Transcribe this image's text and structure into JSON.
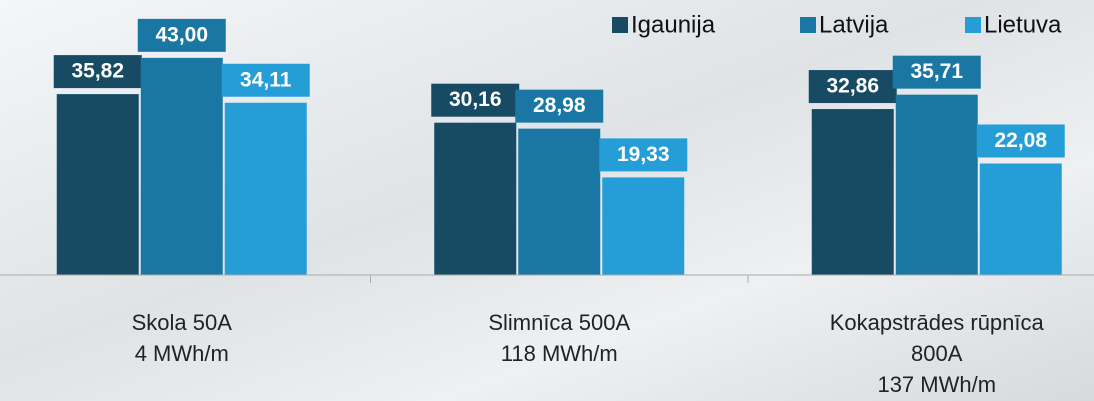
{
  "chart_data": {
    "type": "bar",
    "categories": [
      [
        "Skola 50A",
        "4 MWh/m"
      ],
      [
        "Slimnīca 500A",
        "118 MWh/m"
      ],
      [
        "Kokapstrādes rūpnīca",
        "800A",
        "137 MWh/m"
      ]
    ],
    "series": [
      {
        "name": "Igaunija",
        "color": "#174a63",
        "values": [
          35.82,
          30.16,
          32.86
        ],
        "value_labels": [
          "35,82",
          "30,16",
          "32,86"
        ]
      },
      {
        "name": "Latvija",
        "color": "#1a77a3",
        "values": [
          43.0,
          28.98,
          35.71
        ],
        "value_labels": [
          "43,00",
          "28,98",
          "35,71"
        ]
      },
      {
        "name": "Lietuva",
        "color": "#259ed8",
        "values": [
          34.11,
          19.33,
          22.08
        ],
        "value_labels": [
          "34,11",
          "19,33",
          "22,08"
        ]
      }
    ],
    "ylim": [
      0,
      50
    ],
    "legend": "top-right"
  }
}
